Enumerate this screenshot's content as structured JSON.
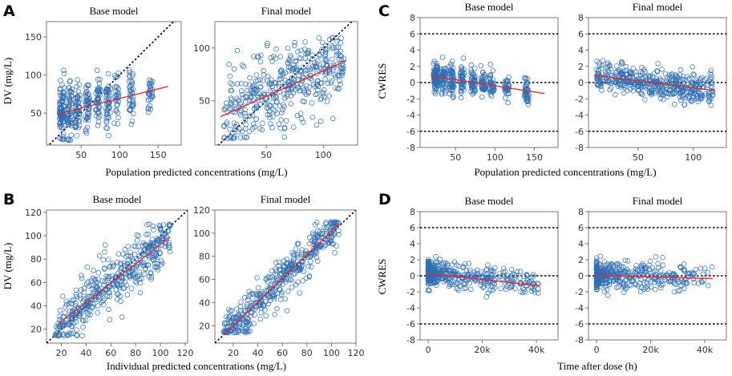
{
  "colors": {
    "points": "#2f6fb5",
    "fit": "#e8282b",
    "reference": "#000000",
    "axis": "#555555"
  },
  "chart_data": [
    {
      "panel": "A",
      "type": "scatter",
      "kind": "dv",
      "title": "Base model",
      "xlim": [
        5,
        180
      ],
      "ylim": [
        8,
        170
      ],
      "xticks": [
        50,
        100,
        150
      ],
      "yticks": [
        50,
        100,
        150
      ],
      "reference": "identity",
      "fit_line": [
        [
          20,
          49
        ],
        [
          163,
          85
        ]
      ],
      "sim": {
        "seed": 11,
        "n": 430,
        "xmin": 18,
        "xmax": 160,
        "skew": 1.6,
        "slope": 0.25,
        "intercept": 44,
        "sd": 17,
        "ymin": 14,
        "ymax": 107,
        "mode": "cluster"
      }
    },
    {
      "panel": "A",
      "type": "scatter",
      "kind": "dv",
      "title": "Final model",
      "xlim": [
        5,
        130
      ],
      "ylim": [
        8,
        125
      ],
      "xticks": [
        50,
        100
      ],
      "yticks": [
        50,
        100
      ],
      "reference": "identity",
      "fit_line": [
        [
          10,
          35
        ],
        [
          120,
          88
        ]
      ],
      "sim": {
        "seed": 23,
        "n": 430,
        "xmin": 12,
        "xmax": 118,
        "skew": 1.0,
        "slope": 0.48,
        "intercept": 30,
        "sd": 17,
        "ymin": 14,
        "ymax": 110,
        "mode": "normal"
      }
    },
    {
      "panel": "C",
      "type": "scatter",
      "kind": "cwres",
      "title": "Base model",
      "xlim": [
        5,
        180
      ],
      "ylim": [
        -8,
        8
      ],
      "xticks": [
        50,
        100,
        150
      ],
      "yticks": [
        -8,
        -6,
        -4,
        -2,
        0,
        2,
        4,
        6,
        8
      ],
      "hlines": [
        -6,
        0,
        6
      ],
      "fit_line": [
        [
          20,
          0.8
        ],
        [
          163,
          -1.35
        ]
      ],
      "sim": {
        "seed": 31,
        "n": 430,
        "xmin": 18,
        "xmax": 160,
        "skew": 1.6,
        "slope": -0.015,
        "intercept": 1.1,
        "sd": 0.9,
        "ymin": -2.8,
        "ymax": 3.4,
        "mode": "cluster"
      }
    },
    {
      "panel": "C",
      "type": "scatter",
      "kind": "cwres",
      "title": "Final model",
      "xlim": [
        5,
        130
      ],
      "ylim": [
        -8,
        8
      ],
      "xticks": [
        50,
        100
      ],
      "yticks": [
        -8,
        -6,
        -4,
        -2,
        0,
        2,
        4,
        6,
        8
      ],
      "hlines": [
        -6,
        0,
        6
      ],
      "fit_line": [
        [
          10,
          0.9
        ],
        [
          120,
          -1.0
        ]
      ],
      "sim": {
        "seed": 37,
        "n": 430,
        "xmin": 12,
        "xmax": 118,
        "skew": 1.0,
        "slope": -0.017,
        "intercept": 1.0,
        "sd": 0.9,
        "ymin": -2.8,
        "ymax": 3.0,
        "mode": "normal"
      }
    },
    {
      "panel": "B",
      "type": "scatter",
      "kind": "dv",
      "title": "Base model",
      "xlim": [
        8,
        122
      ],
      "ylim": [
        8,
        122
      ],
      "xticks": [
        20,
        40,
        60,
        80,
        100,
        120
      ],
      "yticks": [
        20,
        40,
        60,
        80,
        100,
        120
      ],
      "reference": "identity",
      "fit_line": [
        [
          17,
          24
        ],
        [
          108,
          99
        ]
      ],
      "sim": {
        "seed": 41,
        "n": 430,
        "xmin": 15,
        "xmax": 108,
        "skew": 1.0,
        "slope": 0.83,
        "intercept": 10,
        "sd": 11,
        "ymin": 14,
        "ymax": 110,
        "mode": "normal"
      }
    },
    {
      "panel": "B",
      "type": "scatter",
      "kind": "dv",
      "title": "Final model",
      "xlim": [
        5,
        120
      ],
      "ylim": [
        5,
        120
      ],
      "xticks": [
        20,
        40,
        60,
        80,
        100,
        120
      ],
      "yticks": [
        20,
        40,
        60,
        80,
        100,
        120
      ],
      "reference": "identity",
      "fit_line": [
        [
          12,
          12
        ],
        [
          106,
          108
        ]
      ],
      "sim": {
        "seed": 53,
        "n": 430,
        "xmin": 12,
        "xmax": 106,
        "skew": 1.0,
        "slope": 1.0,
        "intercept": 0,
        "sd": 9,
        "ymin": 14,
        "ymax": 110,
        "mode": "normal"
      }
    },
    {
      "panel": "D",
      "type": "scatter",
      "kind": "cwres",
      "title": "Base model",
      "xlim": [
        -3000,
        48000
      ],
      "ylim": [
        -8,
        8
      ],
      "xticks": [
        0,
        20000,
        40000
      ],
      "xtick_labels": [
        "0",
        "20k",
        "40k"
      ],
      "yticks": [
        -8,
        -6,
        -4,
        -2,
        0,
        2,
        4,
        6,
        8
      ],
      "hlines": [
        -6,
        0,
        6
      ],
      "fit_line": [
        [
          0,
          0.3
        ],
        [
          41000,
          -1.25
        ]
      ],
      "sim": {
        "seed": 61,
        "n": 430,
        "xmin": 0,
        "xmax": 41000,
        "skew": 2.8,
        "slope": -3.5e-05,
        "intercept": 0.4,
        "sd": 0.85,
        "ymin": -2.8,
        "ymax": 3.2,
        "mode": "normal"
      }
    },
    {
      "panel": "D",
      "type": "scatter",
      "kind": "cwres",
      "title": "Final model",
      "xlim": [
        -3000,
        48000
      ],
      "ylim": [
        -8,
        8
      ],
      "xticks": [
        0,
        20000,
        40000
      ],
      "xtick_labels": [
        "0",
        "20k",
        "40k"
      ],
      "yticks": [
        -8,
        -6,
        -4,
        -2,
        0,
        2,
        4,
        6,
        8
      ],
      "hlines": [
        -6,
        0,
        6
      ],
      "fit_line": [
        [
          0,
          0.05
        ],
        [
          43000,
          -0.35
        ]
      ],
      "sim": {
        "seed": 71,
        "n": 430,
        "xmin": 0,
        "xmax": 43000,
        "skew": 2.8,
        "slope": -1e-05,
        "intercept": 0.1,
        "sd": 0.85,
        "ymin": -2.8,
        "ymax": 3.0,
        "mode": "normal"
      }
    }
  ],
  "figure": {
    "panel_labels": {
      "a": "A",
      "b": "B",
      "c": "C",
      "d": "D"
    },
    "ylabels": {
      "dv": "DV (mg/L)",
      "cwres": "CWRES"
    },
    "xlabels": {
      "a": "Population predicted concentrations (mg/L)",
      "c": "Population predicted concentrations (mg/L)",
      "b": "Individual predicted concentrations (mg/L)",
      "d": "Time after dose (h)"
    }
  }
}
